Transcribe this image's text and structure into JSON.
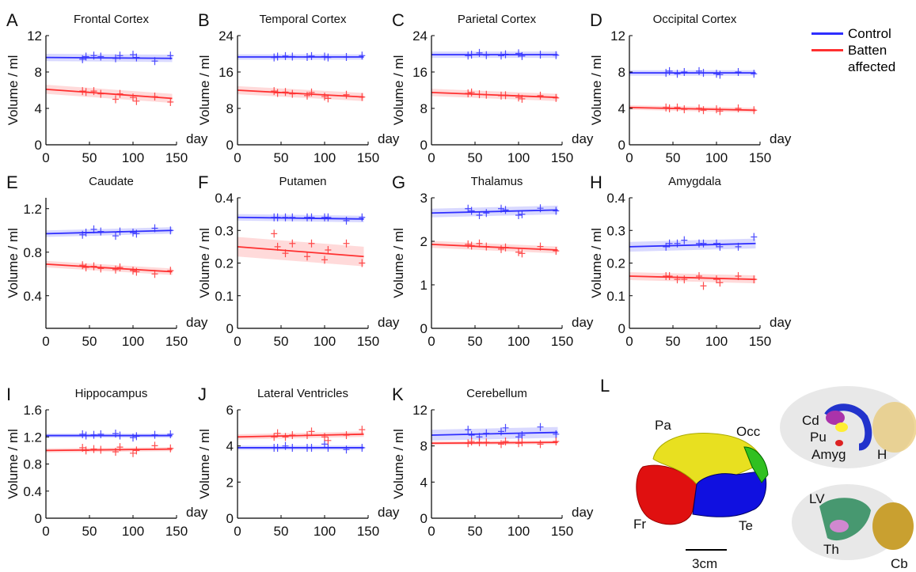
{
  "legend": [
    {
      "name": "Control",
      "color": "#2e2eff"
    },
    {
      "name": "Batten affected",
      "color": "#ff3030"
    }
  ],
  "chart_data": [
    {
      "type": "scatter",
      "letter": "A",
      "title": "Frontal Cortex",
      "ylabel": "Volume / ml",
      "xlabel": "day",
      "xlim": [
        0,
        150
      ],
      "xticks": [
        0,
        50,
        100,
        150
      ],
      "ylim": [
        0,
        12
      ],
      "yticks": [
        0,
        4,
        8,
        12
      ],
      "x": [
        42,
        46,
        55,
        63,
        80,
        85,
        100,
        104,
        125,
        143
      ],
      "fit_x": [
        0,
        145
      ],
      "series": [
        {
          "color": "#2e2eff",
          "values": [
            9.4,
            9.7,
            9.8,
            9.7,
            9.5,
            9.8,
            9.9,
            9.6,
            9.2,
            9.8
          ],
          "fit": [
            9.6,
            9.5
          ],
          "band": 0.4
        },
        {
          "color": "#ff3030",
          "values": [
            5.9,
            5.8,
            5.9,
            5.6,
            5.0,
            5.6,
            5.2,
            4.8,
            5.3,
            4.7
          ],
          "fit": [
            6.1,
            5.1
          ],
          "band": 0.5
        }
      ]
    },
    {
      "type": "scatter",
      "letter": "B",
      "title": "Temporal Cortex",
      "ylabel": "Volume / ml",
      "xlabel": "day",
      "xlim": [
        0,
        150
      ],
      "xticks": [
        0,
        50,
        100,
        150
      ],
      "ylim": [
        0,
        24
      ],
      "yticks": [
        0,
        8,
        16,
        24
      ],
      "x": [
        42,
        46,
        55,
        63,
        80,
        85,
        100,
        104,
        125,
        143
      ],
      "fit_x": [
        0,
        145
      ],
      "series": [
        {
          "color": "#2e2eff",
          "values": [
            19.2,
            19.4,
            19.5,
            19.4,
            19.3,
            19.5,
            19.4,
            19.2,
            19.3,
            19.6
          ],
          "fit": [
            19.3,
            19.3
          ],
          "band": 0.6
        },
        {
          "color": "#ff3030",
          "values": [
            11.8,
            11.4,
            11.6,
            11.2,
            10.8,
            11.5,
            10.6,
            10.2,
            11.0,
            10.5
          ],
          "fit": [
            12.0,
            10.5
          ],
          "band": 0.9
        }
      ]
    },
    {
      "type": "scatter",
      "letter": "C",
      "title": "Parietal Cortex",
      "ylabel": "Volume / ml",
      "xlabel": "day",
      "xlim": [
        0,
        150
      ],
      "xticks": [
        0,
        50,
        100,
        150
      ],
      "ylim": [
        0,
        24
      ],
      "yticks": [
        0,
        8,
        16,
        24
      ],
      "x": [
        42,
        46,
        55,
        63,
        80,
        85,
        100,
        104,
        125,
        143
      ],
      "fit_x": [
        0,
        145
      ],
      "series": [
        {
          "color": "#2e2eff",
          "values": [
            19.6,
            19.8,
            20.2,
            19.7,
            19.6,
            19.9,
            20.1,
            19.5,
            19.8,
            19.7
          ],
          "fit": [
            19.8,
            19.8
          ],
          "band": 0.7
        },
        {
          "color": "#ff3030",
          "values": [
            11.3,
            11.5,
            11.1,
            11.0,
            10.8,
            10.9,
            10.4,
            10.1,
            10.8,
            10.3
          ],
          "fit": [
            11.5,
            10.4
          ],
          "band": 0.8
        }
      ]
    },
    {
      "type": "scatter",
      "letter": "D",
      "title": "Occipital Cortex",
      "ylabel": "Volume / ml",
      "xlabel": "day",
      "xlim": [
        0,
        150
      ],
      "xticks": [
        0,
        50,
        100,
        150
      ],
      "ylim": [
        0,
        12
      ],
      "yticks": [
        0,
        4,
        8,
        12
      ],
      "x": [
        42,
        46,
        55,
        63,
        80,
        85,
        100,
        104,
        125,
        143
      ],
      "fit_x": [
        0,
        145
      ],
      "series": [
        {
          "color": "#2e2eff",
          "values": [
            7.9,
            8.1,
            7.8,
            8.0,
            8.1,
            7.9,
            7.8,
            7.7,
            8.0,
            7.8
          ],
          "fit": [
            7.9,
            7.9
          ],
          "band": 0.3
        },
        {
          "color": "#ff3030",
          "values": [
            4.1,
            4.0,
            4.1,
            3.9,
            4.0,
            3.8,
            3.9,
            3.7,
            4.0,
            3.8
          ],
          "fit": [
            4.1,
            3.8
          ],
          "band": 0.25
        }
      ]
    },
    {
      "type": "scatter",
      "letter": "E",
      "title": "Caudate",
      "ylabel": "Volume / ml",
      "xlabel": "day",
      "xlim": [
        0,
        150
      ],
      "xticks": [
        0,
        50,
        100,
        150
      ],
      "ylim": [
        0.1,
        1.3
      ],
      "yticks": [
        0.4,
        0.8,
        1.2
      ],
      "x": [
        42,
        46,
        55,
        63,
        80,
        85,
        100,
        104,
        125,
        143
      ],
      "fit_x": [
        0,
        145
      ],
      "series": [
        {
          "color": "#2e2eff",
          "values": [
            0.96,
            0.98,
            1.01,
            0.99,
            0.95,
            0.99,
            0.98,
            0.97,
            1.02,
            1.0
          ],
          "fit": [
            0.97,
            1.0
          ],
          "band": 0.03
        },
        {
          "color": "#ff3030",
          "values": [
            0.68,
            0.66,
            0.67,
            0.65,
            0.64,
            0.66,
            0.63,
            0.62,
            0.6,
            0.63
          ],
          "fit": [
            0.69,
            0.62
          ],
          "band": 0.03
        }
      ]
    },
    {
      "type": "scatter",
      "letter": "F",
      "title": "Putamen",
      "ylabel": "Volume / ml",
      "xlabel": "day",
      "xlim": [
        0,
        150
      ],
      "xticks": [
        0,
        50,
        100,
        150
      ],
      "ylim": [
        0,
        0.4
      ],
      "yticks": [
        0,
        0.1,
        0.2,
        0.3,
        0.4
      ],
      "x": [
        42,
        46,
        55,
        63,
        80,
        85,
        100,
        104,
        125,
        143
      ],
      "fit_x": [
        0,
        145
      ],
      "series": [
        {
          "color": "#2e2eff",
          "values": [
            0.34,
            0.34,
            0.34,
            0.34,
            0.34,
            0.34,
            0.34,
            0.34,
            0.33,
            0.34
          ],
          "fit": [
            0.34,
            0.335
          ],
          "band": 0.01
        },
        {
          "color": "#ff3030",
          "values": [
            0.29,
            0.25,
            0.23,
            0.26,
            0.22,
            0.26,
            0.21,
            0.24,
            0.26,
            0.2
          ],
          "fit": [
            0.25,
            0.22
          ],
          "band": 0.03
        }
      ]
    },
    {
      "type": "scatter",
      "letter": "G",
      "title": "Thalamus",
      "ylabel": "Volume / ml",
      "xlabel": "day",
      "xlim": [
        0,
        150
      ],
      "xticks": [
        0,
        50,
        100,
        150
      ],
      "ylim": [
        0,
        3
      ],
      "yticks": [
        0,
        1,
        2,
        3
      ],
      "x": [
        42,
        46,
        55,
        63,
        80,
        85,
        100,
        104,
        125,
        143
      ],
      "fit_x": [
        0,
        145
      ],
      "series": [
        {
          "color": "#2e2eff",
          "values": [
            2.75,
            2.7,
            2.6,
            2.65,
            2.75,
            2.72,
            2.6,
            2.62,
            2.76,
            2.7
          ],
          "fit": [
            2.65,
            2.72
          ],
          "band": 0.1
        },
        {
          "color": "#ff3030",
          "values": [
            1.93,
            1.9,
            1.95,
            1.88,
            1.82,
            1.86,
            1.75,
            1.72,
            1.88,
            1.78
          ],
          "fit": [
            1.93,
            1.8
          ],
          "band": 0.08
        }
      ]
    },
    {
      "type": "scatter",
      "letter": "H",
      "title": "Amygdala",
      "ylabel": "Volume / ml",
      "xlabel": "day",
      "xlim": [
        0,
        150
      ],
      "xticks": [
        0,
        50,
        100,
        150
      ],
      "ylim": [
        0,
        0.4
      ],
      "yticks": [
        0,
        0.1,
        0.2,
        0.3,
        0.4
      ],
      "x": [
        42,
        46,
        55,
        63,
        80,
        85,
        100,
        104,
        125,
        143
      ],
      "fit_x": [
        0,
        145
      ],
      "series": [
        {
          "color": "#2e2eff",
          "values": [
            0.25,
            0.26,
            0.26,
            0.27,
            0.26,
            0.26,
            0.26,
            0.25,
            0.25,
            0.28
          ],
          "fit": [
            0.25,
            0.26
          ],
          "band": 0.015
        },
        {
          "color": "#ff3030",
          "values": [
            0.16,
            0.16,
            0.15,
            0.15,
            0.16,
            0.13,
            0.15,
            0.14,
            0.16,
            0.15
          ],
          "fit": [
            0.16,
            0.15
          ],
          "band": 0.012
        }
      ]
    },
    {
      "type": "scatter",
      "letter": "I",
      "title": "Hippocampus",
      "ylabel": "Volume / ml",
      "xlabel": "day",
      "xlim": [
        0,
        150
      ],
      "xticks": [
        0,
        50,
        100,
        150
      ],
      "ylim": [
        0,
        1.6
      ],
      "yticks": [
        0,
        0.4,
        0.8,
        1.2,
        1.6
      ],
      "x": [
        42,
        46,
        55,
        63,
        80,
        85,
        100,
        104,
        125,
        143
      ],
      "fit_x": [
        0,
        145
      ],
      "series": [
        {
          "color": "#2e2eff",
          "values": [
            1.24,
            1.22,
            1.23,
            1.24,
            1.25,
            1.22,
            1.19,
            1.21,
            1.23,
            1.24
          ],
          "fit": [
            1.22,
            1.22
          ],
          "band": 0.03
        },
        {
          "color": "#ff3030",
          "values": [
            1.04,
            1.0,
            1.02,
            1.01,
            0.98,
            1.05,
            0.96,
            1.0,
            1.07,
            1.03
          ],
          "fit": [
            1.0,
            1.02
          ],
          "band": 0.03
        }
      ]
    },
    {
      "type": "scatter",
      "letter": "J",
      "title": "Lateral Ventricles",
      "ylabel": "Volume / ml",
      "xlabel": "day",
      "xlim": [
        0,
        150
      ],
      "xticks": [
        0,
        50,
        100,
        150
      ],
      "ylim": [
        0,
        6
      ],
      "yticks": [
        0,
        2,
        4,
        6
      ],
      "x": [
        42,
        46,
        55,
        63,
        80,
        85,
        100,
        104,
        125,
        143
      ],
      "fit_x": [
        0,
        145
      ],
      "series": [
        {
          "color": "#2e2eff",
          "values": [
            3.9,
            3.9,
            4.0,
            3.9,
            3.9,
            3.9,
            4.1,
            3.9,
            3.8,
            3.9
          ],
          "fit": [
            3.9,
            3.9
          ],
          "band": 0.12
        },
        {
          "color": "#ff3030",
          "values": [
            4.5,
            4.7,
            4.5,
            4.6,
            4.6,
            4.8,
            4.5,
            4.3,
            4.6,
            4.9
          ],
          "fit": [
            4.5,
            4.65
          ],
          "band": 0.15
        }
      ]
    },
    {
      "type": "scatter",
      "letter": "K",
      "title": "Cerebellum",
      "ylabel": "Volume / ml",
      "xlabel": "day",
      "xlim": [
        0,
        150
      ],
      "xticks": [
        0,
        50,
        100,
        150
      ],
      "ylim": [
        0,
        12
      ],
      "yticks": [
        0,
        4,
        8,
        12
      ],
      "x": [
        42,
        46,
        55,
        63,
        80,
        85,
        100,
        104,
        125,
        143
      ],
      "fit_x": [
        0,
        145
      ],
      "series": [
        {
          "color": "#2e2eff",
          "values": [
            9.8,
            9.2,
            9.0,
            9.4,
            9.6,
            10.0,
            9.0,
            9.2,
            10.1,
            9.3
          ],
          "fit": [
            9.2,
            9.5
          ],
          "band": 0.6
        },
        {
          "color": "#ff3030",
          "values": [
            8.3,
            8.5,
            8.4,
            8.4,
            8.2,
            8.5,
            8.3,
            8.4,
            8.2,
            8.5
          ],
          "fit": [
            8.3,
            8.4
          ],
          "band": 0.2
        }
      ]
    }
  ],
  "figure_l": {
    "letter": "L",
    "scale": "3cm",
    "labels": {
      "pa": "Pa",
      "occ": "Occ",
      "fr": "Fr",
      "te": "Te",
      "cd": "Cd",
      "pu": "Pu",
      "amyg": "Amyg",
      "h": "H",
      "lv": "LV",
      "th": "Th",
      "cb": "Cb"
    }
  }
}
